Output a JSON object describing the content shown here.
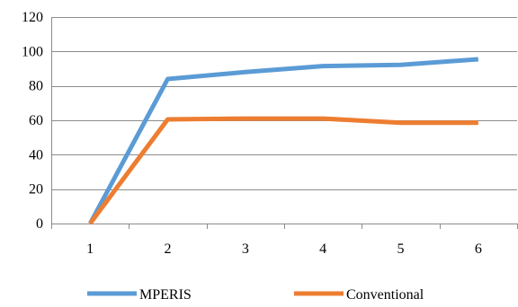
{
  "chart_data": {
    "type": "line",
    "x": [
      1,
      2,
      3,
      4,
      5,
      6
    ],
    "categories": [
      "1",
      "2",
      "3",
      "4",
      "5",
      "6"
    ],
    "series": [
      {
        "name": "MPERIS",
        "values": [
          0,
          84,
          88,
          91.5,
          92.2,
          95.5
        ],
        "color": "#5B9BD5"
      },
      {
        "name": "Conventional",
        "values": [
          0,
          60.5,
          61,
          61,
          58.6,
          58.6
        ],
        "color": "#ED7D31"
      }
    ],
    "ylim": [
      0,
      120
    ],
    "yticks": [
      0,
      20,
      40,
      60,
      80,
      100,
      120
    ],
    "ytick_labels": [
      "0",
      "20",
      "40",
      "60",
      "80",
      "100",
      "120"
    ],
    "grid": true,
    "legend_position": "bottom",
    "title": "",
    "xlabel": "",
    "ylabel": ""
  }
}
